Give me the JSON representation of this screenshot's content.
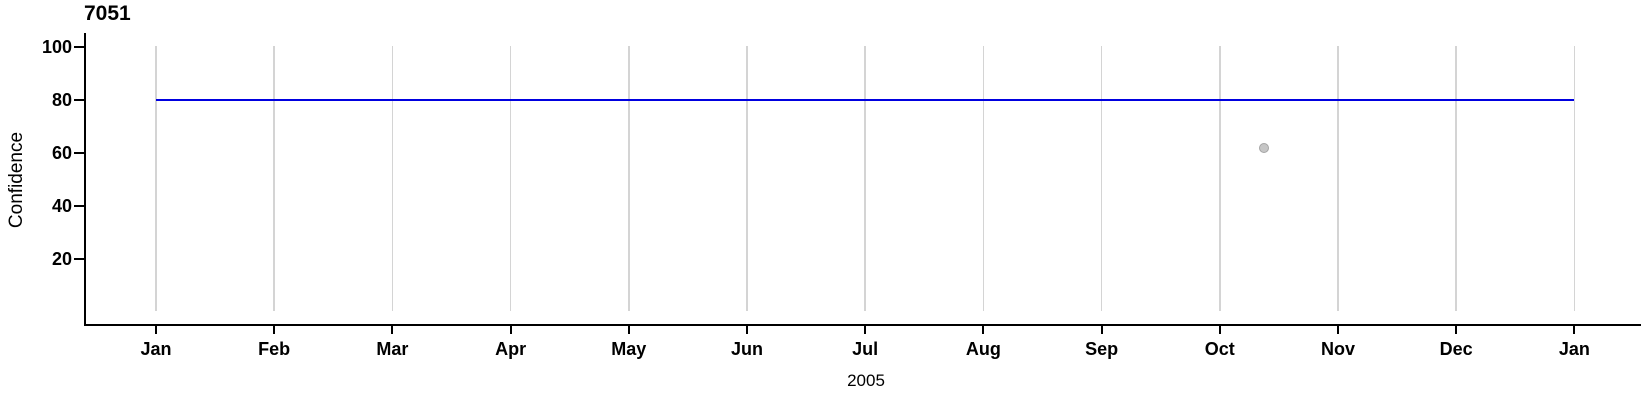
{
  "chart_data": {
    "type": "line",
    "title": "7051",
    "xlabel": "2005",
    "ylabel": "Confidence",
    "x_categories": [
      "Jan",
      "Feb",
      "Mar",
      "Apr",
      "May",
      "Jun",
      "Jul",
      "Aug",
      "Sep",
      "Oct",
      "Nov",
      "Dec",
      "Jan"
    ],
    "yticks": [
      20,
      40,
      60,
      80,
      100
    ],
    "ylim": [
      0,
      105
    ],
    "grid": "vertical-month-gridlines",
    "legend": "none",
    "series": [
      {
        "name": "confidence-threshold-line",
        "type": "line",
        "color": "#0000E0",
        "value": 80,
        "x_start_month": 0,
        "x_end_month": 12
      },
      {
        "name": "confidence-observation",
        "type": "scatter",
        "fill": "#C6C6C6",
        "stroke": "#A5A5A5",
        "month_index": 9.37,
        "value": 62
      }
    ],
    "colors": {
      "gridline": "#D4D4D4",
      "axis": "#000000",
      "text": "#000000"
    }
  }
}
